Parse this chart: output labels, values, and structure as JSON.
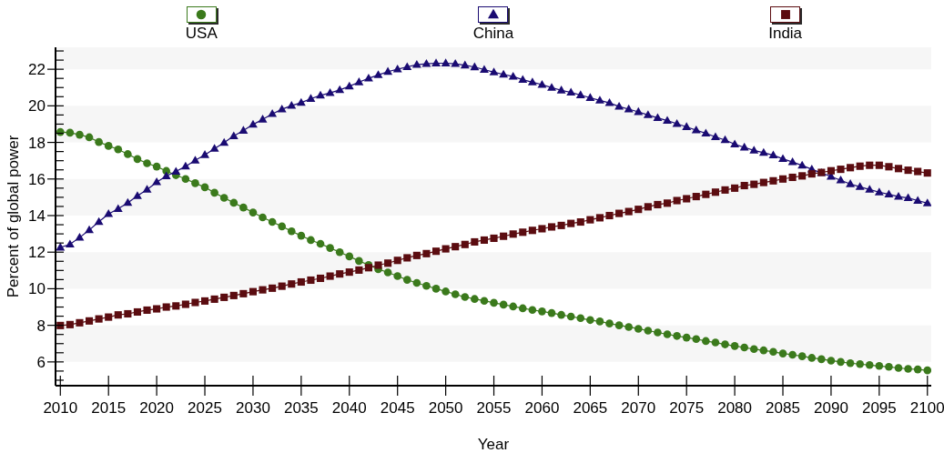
{
  "chart_data": {
    "type": "line",
    "xlabel": "Year",
    "ylabel": "Percent of global power",
    "legend": "top",
    "line_style": "solid",
    "xlim": [
      2009.5,
      2100.4
    ],
    "xticks": [
      2010,
      2015,
      2020,
      2025,
      2030,
      2035,
      2040,
      2045,
      2050,
      2055,
      2060,
      2065,
      2070,
      2075,
      2080,
      2085,
      2090,
      2095,
      2100
    ],
    "ylim": [
      4.7,
      23.2
    ],
    "yticks": [
      {
        "value": 5,
        "label": null
      },
      {
        "value": 5.5,
        "label": null
      },
      6,
      {
        "value": 6.5,
        "label": null
      },
      {
        "value": 7,
        "label": null
      },
      {
        "value": 7.5,
        "label": null
      },
      8,
      {
        "value": 8.5,
        "label": null
      },
      {
        "value": 9,
        "label": null
      },
      {
        "value": 9.5,
        "label": null
      },
      10,
      {
        "value": 10.5,
        "label": null
      },
      {
        "value": 11,
        "label": null
      },
      {
        "value": 11.5,
        "label": null
      },
      12,
      {
        "value": 12.5,
        "label": null
      },
      {
        "value": 13,
        "label": null
      },
      {
        "value": 13.5,
        "label": null
      },
      14,
      {
        "value": 14.5,
        "label": null
      },
      {
        "value": 15,
        "label": null
      },
      {
        "value": 15.5,
        "label": null
      },
      16,
      {
        "value": 16.5,
        "label": null
      },
      {
        "value": 17,
        "label": null
      },
      {
        "value": 17.5,
        "label": null
      },
      18,
      {
        "value": 18.5,
        "label": null
      },
      {
        "value": 19,
        "label": null
      },
      {
        "value": 19.5,
        "label": null
      },
      20,
      {
        "value": 20.5,
        "label": null
      },
      {
        "value": 21,
        "label": null
      },
      {
        "value": 21.5,
        "label": null
      },
      22,
      {
        "value": 22.5,
        "label": null
      },
      {
        "value": 23,
        "label": null
      }
    ],
    "bands": [
      {
        "axis": "y",
        "from": 6,
        "to": 8,
        "color": "#f6f6f6"
      },
      {
        "axis": "y",
        "from": 10,
        "to": 12,
        "color": "#f6f6f6"
      },
      {
        "axis": "y",
        "from": 14,
        "to": 16,
        "color": "#f6f6f6"
      },
      {
        "axis": "y",
        "from": 18,
        "to": 20,
        "color": "#f6f6f6"
      },
      {
        "axis": "y",
        "from": 22,
        "to": 23.2,
        "color": "#f6f6f6"
      }
    ],
    "x": [
      2010,
      2011,
      2012,
      2013,
      2014,
      2015,
      2016,
      2017,
      2018,
      2019,
      2020,
      2021,
      2022,
      2023,
      2024,
      2025,
      2026,
      2027,
      2028,
      2029,
      2030,
      2031,
      2032,
      2033,
      2034,
      2035,
      2036,
      2037,
      2038,
      2039,
      2040,
      2041,
      2042,
      2043,
      2044,
      2045,
      2046,
      2047,
      2048,
      2049,
      2050,
      2051,
      2052,
      2053,
      2054,
      2055,
      2056,
      2057,
      2058,
      2059,
      2060,
      2061,
      2062,
      2063,
      2064,
      2065,
      2066,
      2067,
      2068,
      2069,
      2070,
      2071,
      2072,
      2073,
      2074,
      2075,
      2076,
      2077,
      2078,
      2079,
      2080,
      2081,
      2082,
      2083,
      2084,
      2085,
      2086,
      2087,
      2088,
      2089,
      2090,
      2091,
      2092,
      2093,
      2094,
      2095,
      2096,
      2097,
      2098,
      2099,
      2100
    ],
    "series": [
      {
        "name": "USA",
        "color": "#3b7a1c",
        "marker": "circle",
        "values": [
          18.57,
          18.53,
          18.42,
          18.28,
          18.02,
          17.81,
          17.62,
          17.36,
          17.09,
          16.86,
          16.68,
          16.44,
          16.21,
          16.0,
          15.77,
          15.55,
          15.25,
          14.97,
          14.7,
          14.44,
          14.17,
          13.9,
          13.65,
          13.41,
          13.14,
          12.9,
          12.66,
          12.46,
          12.23,
          12.0,
          11.77,
          11.52,
          11.3,
          11.07,
          10.89,
          10.69,
          10.49,
          10.32,
          10.16,
          10.0,
          9.85,
          9.7,
          9.55,
          9.44,
          9.34,
          9.23,
          9.13,
          9.03,
          8.93,
          8.84,
          8.76,
          8.67,
          8.57,
          8.48,
          8.39,
          8.29,
          8.21,
          8.1,
          8.0,
          7.91,
          7.81,
          7.71,
          7.61,
          7.51,
          7.42,
          7.33,
          7.25,
          7.14,
          7.06,
          6.96,
          6.87,
          6.79,
          6.7,
          6.63,
          6.55,
          6.46,
          6.39,
          6.31,
          6.22,
          6.15,
          6.07,
          6.0,
          5.93,
          5.88,
          5.83,
          5.78,
          5.73,
          5.67,
          5.62,
          5.59,
          5.54
        ]
      },
      {
        "name": "China",
        "color": "#1a0b72",
        "marker": "triangle",
        "values": [
          12.26,
          12.43,
          12.8,
          13.21,
          13.66,
          14.09,
          14.37,
          14.7,
          15.08,
          15.42,
          15.83,
          16.16,
          16.41,
          16.69,
          17.02,
          17.32,
          17.66,
          17.99,
          18.35,
          18.65,
          18.98,
          19.26,
          19.56,
          19.81,
          20.01,
          20.17,
          20.39,
          20.57,
          20.71,
          20.87,
          21.07,
          21.3,
          21.5,
          21.69,
          21.87,
          22.0,
          22.13,
          22.25,
          22.3,
          22.33,
          22.33,
          22.3,
          22.22,
          22.12,
          21.98,
          21.84,
          21.72,
          21.6,
          21.43,
          21.29,
          21.16,
          20.99,
          20.85,
          20.73,
          20.59,
          20.44,
          20.3,
          20.16,
          19.96,
          19.82,
          19.67,
          19.5,
          19.34,
          19.19,
          19.02,
          18.85,
          18.67,
          18.5,
          18.3,
          18.13,
          17.9,
          17.73,
          17.56,
          17.44,
          17.3,
          17.1,
          16.93,
          16.74,
          16.53,
          16.33,
          16.14,
          15.93,
          15.73,
          15.57,
          15.42,
          15.28,
          15.16,
          15.04,
          14.96,
          14.82,
          14.68
        ]
      },
      {
        "name": "India",
        "color": "#5b0c10",
        "marker": "square",
        "values": [
          7.99,
          8.04,
          8.14,
          8.24,
          8.35,
          8.45,
          8.57,
          8.63,
          8.73,
          8.83,
          8.9,
          9.0,
          9.06,
          9.15,
          9.25,
          9.33,
          9.43,
          9.53,
          9.63,
          9.73,
          9.84,
          9.94,
          10.03,
          10.14,
          10.26,
          10.37,
          10.47,
          10.57,
          10.69,
          10.81,
          10.91,
          11.02,
          11.15,
          11.29,
          11.4,
          11.55,
          11.69,
          11.82,
          11.92,
          12.05,
          12.18,
          12.3,
          12.42,
          12.56,
          12.66,
          12.76,
          12.87,
          12.99,
          13.09,
          13.19,
          13.28,
          13.38,
          13.46,
          13.57,
          13.65,
          13.77,
          13.88,
          14.0,
          14.12,
          14.22,
          14.34,
          14.48,
          14.6,
          14.68,
          14.82,
          14.92,
          15.04,
          15.16,
          15.28,
          15.4,
          15.5,
          15.64,
          15.71,
          15.81,
          15.9,
          16.0,
          16.09,
          16.17,
          16.28,
          16.36,
          16.45,
          16.53,
          16.62,
          16.7,
          16.75,
          16.75,
          16.67,
          16.57,
          16.48,
          16.41,
          16.33
        ]
      }
    ]
  }
}
